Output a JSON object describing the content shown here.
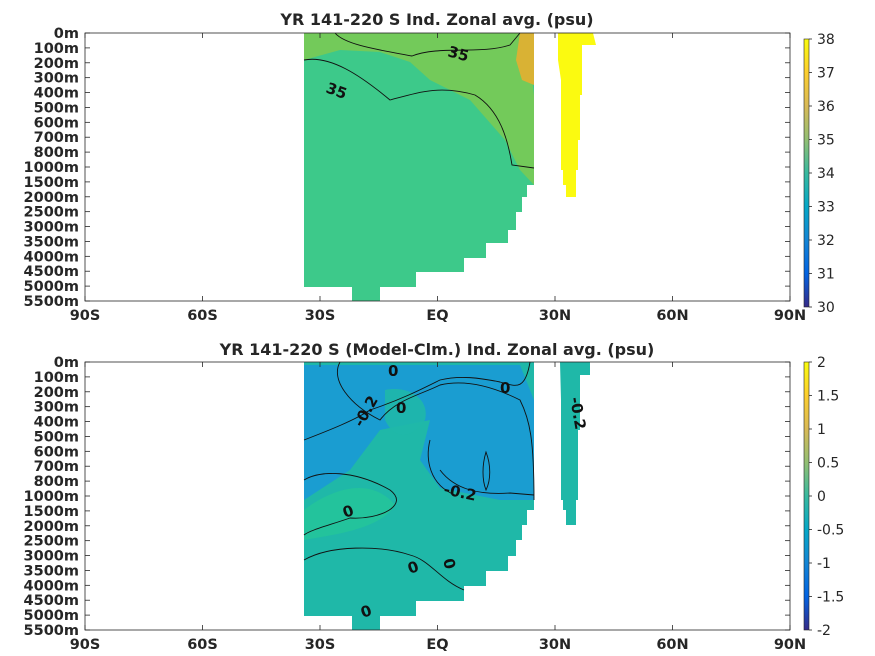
{
  "chart_data": [
    {
      "type": "heatmap",
      "title": "YR 141-220 S Ind. Zonal avg. (psu)",
      "x_ticks": [
        "90S",
        "60S",
        "30S",
        "EQ",
        "30N",
        "60N",
        "90N"
      ],
      "xlim": [
        -90,
        90
      ],
      "y_ticks": [
        "0m",
        "100m",
        "200m",
        "300m",
        "400m",
        "500m",
        "600m",
        "700m",
        "800m",
        "1000m",
        "1500m",
        "2000m",
        "2500m",
        "3000m",
        "3500m",
        "4000m",
        "4500m",
        "5000m",
        "5500m"
      ],
      "colorbar": {
        "min": 30,
        "max": 38,
        "ticks": [
          "30",
          "31",
          "32",
          "33",
          "34",
          "35",
          "36",
          "37",
          "38"
        ]
      },
      "contour_labels": [
        "35",
        "35"
      ],
      "colormap": "parula",
      "grid": false
    },
    {
      "type": "heatmap",
      "title": "YR 141-220 S (Model-Clm.) Ind. Zonal avg. (psu)",
      "x_ticks": [
        "90S",
        "60S",
        "30S",
        "EQ",
        "30N",
        "60N",
        "90N"
      ],
      "xlim": [
        -90,
        90
      ],
      "y_ticks": [
        "0m",
        "100m",
        "200m",
        "300m",
        "400m",
        "500m",
        "600m",
        "700m",
        "800m",
        "1000m",
        "1500m",
        "2000m",
        "2500m",
        "3000m",
        "3500m",
        "4000m",
        "4500m",
        "5000m",
        "5500m"
      ],
      "colorbar": {
        "min": -2,
        "max": 2,
        "ticks": [
          "2",
          "1.5",
          "1",
          "0.5",
          "0",
          "-0.5",
          "-1",
          "-1.5",
          "-2"
        ]
      },
      "contour_labels": [
        "0",
        "0",
        "0",
        "-0.2",
        "-0.2",
        "0",
        "0",
        "0",
        "0",
        "-0.2"
      ],
      "colormap": "parula",
      "grid": false
    }
  ],
  "colors": {
    "fill_main": "#3dc98a",
    "fill_salty": "#86c94a",
    "fill_red_sea": "#d9b234",
    "fill_persian_gulf": "#fbfa10",
    "fill_anom_base": "#1fb8a8",
    "fill_anom_low": "#1a98d8",
    "text": "#262626"
  }
}
